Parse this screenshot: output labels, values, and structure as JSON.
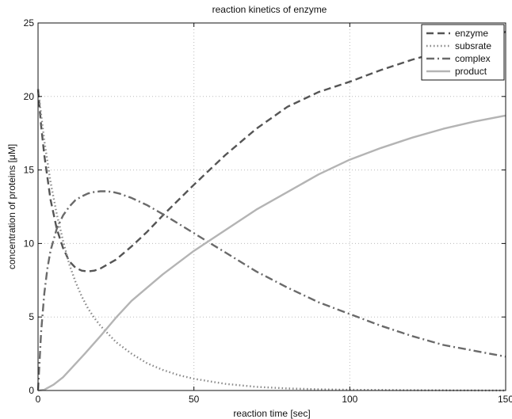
{
  "chart_data": {
    "type": "line",
    "title": "reaction kinetics of enzyme",
    "xlabel": "reaction time [sec]",
    "ylabel": "concentration of proteins [μM]",
    "xlim": [
      0,
      150
    ],
    "ylim": [
      0,
      25
    ],
    "xticks": [
      0,
      50,
      100,
      150
    ],
    "yticks": [
      0,
      5,
      10,
      15,
      20,
      25
    ],
    "grid": true,
    "legend_position": "top-right",
    "series": [
      {
        "name": "enzyme",
        "style": "dashed",
        "color": "#555555",
        "x": [
          0,
          1,
          2,
          4,
          6,
          8,
          10,
          12,
          14,
          16,
          18,
          20,
          25,
          30,
          35,
          40,
          45,
          50,
          55,
          60,
          70,
          80,
          90,
          100,
          110,
          120,
          130,
          140,
          150
        ],
        "y": [
          20.5,
          18.0,
          16.0,
          13.0,
          11.0,
          9.7,
          8.8,
          8.35,
          8.15,
          8.1,
          8.15,
          8.3,
          8.9,
          9.8,
          10.8,
          11.9,
          12.95,
          14.0,
          15.0,
          16.0,
          17.8,
          19.3,
          20.3,
          21.0,
          21.8,
          22.5,
          23.1,
          23.6,
          24.4
        ]
      },
      {
        "name": "subsrate",
        "style": "dotted",
        "color": "#888888",
        "x": [
          0,
          2,
          4,
          6,
          8,
          10,
          12,
          14,
          16,
          18,
          20,
          25,
          30,
          35,
          40,
          45,
          50,
          60,
          70,
          80,
          90,
          100,
          120,
          150
        ],
        "y": [
          20.5,
          17.0,
          14.2,
          12.0,
          10.2,
          8.6,
          7.4,
          6.4,
          5.6,
          4.95,
          4.4,
          3.3,
          2.5,
          1.85,
          1.4,
          1.05,
          0.8,
          0.45,
          0.25,
          0.14,
          0.08,
          0.05,
          0.02,
          0.0
        ]
      },
      {
        "name": "complex",
        "style": "dashdot",
        "color": "#6a6a6a",
        "x": [
          0,
          1,
          2,
          3,
          4,
          6,
          8,
          10,
          12,
          14,
          16,
          18,
          20,
          22,
          24,
          26,
          28,
          30,
          35,
          40,
          45,
          50,
          55,
          60,
          70,
          80,
          90,
          100,
          110,
          120,
          130,
          140,
          150
        ],
        "y": [
          0,
          4.0,
          6.6,
          8.3,
          9.5,
          11.0,
          11.9,
          12.5,
          12.95,
          13.2,
          13.4,
          13.5,
          13.55,
          13.55,
          13.5,
          13.4,
          13.25,
          13.1,
          12.6,
          12.0,
          11.35,
          10.7,
          10.05,
          9.4,
          8.1,
          7.0,
          6.0,
          5.2,
          4.4,
          3.7,
          3.1,
          2.7,
          2.3
        ]
      },
      {
        "name": "product",
        "style": "solid",
        "color": "#b4b4b4",
        "x": [
          0,
          2,
          5,
          8,
          10,
          15,
          20,
          25,
          30,
          40,
          50,
          60,
          70,
          80,
          90,
          100,
          110,
          120,
          130,
          140,
          150
        ],
        "y": [
          0,
          0.05,
          0.4,
          0.9,
          1.35,
          2.5,
          3.7,
          4.95,
          6.1,
          7.9,
          9.5,
          10.9,
          12.3,
          13.5,
          14.7,
          15.7,
          16.5,
          17.2,
          17.8,
          18.3,
          18.7
        ]
      }
    ]
  }
}
